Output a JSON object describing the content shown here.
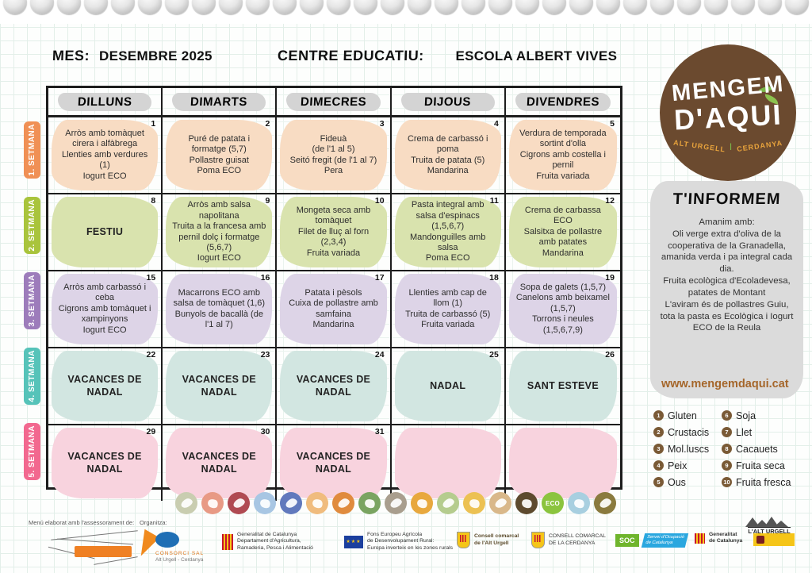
{
  "header": {
    "mes_label": "MES:",
    "mes_value": "DESEMBRE 2025",
    "centre_label": "CENTRE EDUCATIU:",
    "centre_value": "ESCOLA ALBERT VIVES"
  },
  "calendar": {
    "day_headers": [
      "DILLUNS",
      "DIMARTS",
      "DIMECRES",
      "DIJOUS",
      "DIVENDRES"
    ],
    "weeks": [
      {
        "label": "1. SETMANA",
        "tab_color": "#f09055",
        "cell_color": "#f8dcc3",
        "days": [
          {
            "num": "1",
            "text": "Arròs amb tomàquet cirera i alfàbrega\nLlenties amb verdures (1)\nIogurt ECO"
          },
          {
            "num": "2",
            "text": "Puré de patata i formatge (5,7)\nPollastre guisat\nPoma ECO"
          },
          {
            "num": "3",
            "text": "Fideuà\n(de l'1 al 5)\nSeitó fregit (de l'1 al 7)\nPera"
          },
          {
            "num": "4",
            "text": "Crema de carbassó i poma\nTruita de patata (5)\nMandarina"
          },
          {
            "num": "5",
            "text": "Verdura de temporada sortint d'olla\nCigrons amb costella i pernil\nFruita variada"
          }
        ]
      },
      {
        "label": "2. SETMANA",
        "tab_color": "#a9c43c",
        "cell_color": "#d9e3ae",
        "days": [
          {
            "num": "8",
            "text": "FESTIU"
          },
          {
            "num": "9",
            "text": "Arròs amb salsa napolitana\nTruita a la francesa amb pernil dolç i formatge (5,6,7)\nIogurt ECO"
          },
          {
            "num": "10",
            "text": "Mongeta seca amb tomàquet\nFilet de lluç al forn (2,3,4)\nFruita variada"
          },
          {
            "num": "11",
            "text": "Pasta integral amb salsa d'espinacs (1,5,6,7)\nMandonguilles amb salsa\nPoma ECO"
          },
          {
            "num": "12",
            "text": "Crema de carbassa ECO\nSalsitxa de pollastre amb patates\nMandarina"
          }
        ]
      },
      {
        "label": "3. SETMANA",
        "tab_color": "#9d7cbb",
        "cell_color": "#ddd4e7",
        "days": [
          {
            "num": "15",
            "text": "Arròs amb carbassó i ceba\nCigrons amb tomàquet i xampinyons\nIogurt ECO"
          },
          {
            "num": "16",
            "text": "Macarrons ECO amb salsa de tomàquet (1,6)\nBunyols de bacallà (de l'1 al 7)"
          },
          {
            "num": "17",
            "text": "Patata i pèsols\nCuixa de pollastre amb samfaina\nMandarina"
          },
          {
            "num": "18",
            "text": "Llenties amb cap de llom (1)\nTruita de carbassó (5)\nFruita variada"
          },
          {
            "num": "19",
            "text": "Sopa de galets (1,5,7)\nCanelons amb beixamel (1,5,7)\nTorrons i neules (1,5,6,7,9)"
          }
        ]
      },
      {
        "label": "4. SETMANA",
        "tab_color": "#56c3b9",
        "cell_color": "#d2e6e1",
        "days": [
          {
            "num": "22",
            "text": "VACANCES DE NADAL"
          },
          {
            "num": "23",
            "text": "VACANCES DE NADAL"
          },
          {
            "num": "24",
            "text": "VACANCES DE NADAL"
          },
          {
            "num": "25",
            "text": "NADAL"
          },
          {
            "num": "26",
            "text": "SANT ESTEVE"
          }
        ]
      },
      {
        "label": "5. SETMANA",
        "tab_color": "#f2688f",
        "cell_color": "#f8d3de",
        "days": [
          {
            "num": "29",
            "text": "VACANCES DE NADAL"
          },
          {
            "num": "30",
            "text": "VACANCES DE NADAL"
          },
          {
            "num": "31",
            "text": "VACANCES DE NADAL"
          },
          {
            "num": "",
            "text": ""
          },
          {
            "num": "",
            "text": ""
          }
        ]
      }
    ]
  },
  "brand": {
    "logo_line1": "MENGEM",
    "logo_line2": "D'AQUI",
    "logo_sub_left": "ALT URGELL",
    "logo_sub_pipe": "|",
    "logo_sub_right": "CERDANYA",
    "logo_bg": "#6b4a2f",
    "accent_orange": "#e8a33c",
    "accent_green": "#7ab648"
  },
  "info": {
    "title": "T'INFORMEM",
    "body": "Amanim amb:\nOli verge extra d'oliva de la cooperativa de la Granadella, amanida verda i pa integral cada dia.\nFruita ecològica d'Ecoladevesa, patates de Montant\nL'aviram és de pollastres Guiu, tota la pasta es Ecològica i Iogurt ECO de la Reula",
    "website": "www.mengemdaqui.cat"
  },
  "allergen_legend": {
    "items": [
      {
        "n": "1",
        "label": "Gluten"
      },
      {
        "n": "2",
        "label": "Crustacis"
      },
      {
        "n": "3",
        "label": "Mol.luscs"
      },
      {
        "n": "4",
        "label": "Peix"
      },
      {
        "n": "5",
        "label": "Ous"
      },
      {
        "n": "6",
        "label": "Soja"
      },
      {
        "n": "7",
        "label": "Llet"
      },
      {
        "n": "8",
        "label": "Cacauets"
      },
      {
        "n": "9",
        "label": "Fruita seca"
      },
      {
        "n": "10",
        "label": "Fruita fresca"
      }
    ]
  },
  "food_icons": [
    {
      "name": "legumes",
      "color": "#c9cdb0"
    },
    {
      "name": "chicken-leg",
      "color": "#e89a85"
    },
    {
      "name": "red-meat",
      "color": "#b04a52"
    },
    {
      "name": "fish",
      "color": "#a8c6e3"
    },
    {
      "name": "blue-fish",
      "color": "#6179bd"
    },
    {
      "name": "pasta",
      "color": "#f0bc7e"
    },
    {
      "name": "cereals",
      "color": "#e08b3e"
    },
    {
      "name": "vegetables",
      "color": "#7aa461"
    },
    {
      "name": "spices",
      "color": "#a99e8e"
    },
    {
      "name": "poultry",
      "color": "#e8a83e"
    },
    {
      "name": "fruit",
      "color": "#b5cc8e"
    },
    {
      "name": "onion",
      "color": "#ecc153"
    },
    {
      "name": "bread",
      "color": "#d9b88a"
    },
    {
      "name": "dried-herbs",
      "color": "#5d4a2e"
    },
    {
      "name": "eco",
      "color": "#8bc43e",
      "text": "ECO"
    },
    {
      "name": "milk",
      "color": "#a8cfe0"
    },
    {
      "name": "local-producer",
      "color": "#8a7a3e"
    }
  ],
  "footer": {
    "advisory_label": "Menú elaborat amb l'assessorament de:",
    "organitza_label": "Organitza:",
    "consorci_line1": "CONSORCI SAL",
    "consorci_line2": "Alt Urgell - Cerdanya",
    "gencat_agri": "Generalitat de Catalunya\nDepartament d'Agricultura,\nRamaderia, Pesca i Alimentació",
    "eu_text": "Fons Europeu Agrícola\nde Desenvolupament Rural:\nEuropa inverteix en les zones rurals",
    "consell_alt_urgell": "Consell comarcal\nde l'Alt Urgell",
    "consell_cerdanya": "CONSELL COMARCAL\nDE LA CERDANYA",
    "soc": "SOC",
    "soc_sub": "Servei d'Ocupació\nde Catalunya",
    "gencat": "Generalitat\nde Catalunya",
    "alt_urgell": "L'ALT URGELL"
  }
}
